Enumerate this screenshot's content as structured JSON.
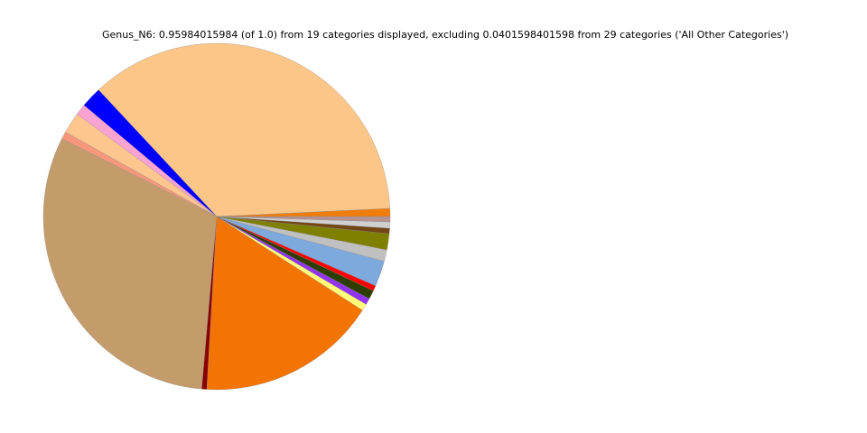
{
  "chart_data": {
    "type": "pie",
    "title": "Genus_N6: 0.95984015984 (of 1.0) from 19 categories displayed, excluding 0.0401598401598 from 29 categories ('All Other Categories')",
    "values": [
      0.0072,
      0.3474,
      0.0187,
      0.0099,
      0.0189,
      0.0067,
      0.2978,
      0.0045,
      0.1613,
      0.0061,
      0.0056,
      0.008,
      0.0048,
      0.0229,
      0.0104,
      0.0144,
      0.0048,
      0.0056,
      0.0048
    ],
    "colors": [
      "#f07d0a",
      "#fdc689",
      "#0000ff",
      "#f9a3d3",
      "#fdc68f",
      "#f7977a",
      "#c49c6c",
      "#8b0000",
      "#f37305",
      "#fffc79",
      "#9333f0",
      "#2d3e00",
      "#ff0000",
      "#7ea9dd",
      "#c0c0c0",
      "#808000",
      "#744515",
      "#d0d0d0",
      "#b59290"
    ],
    "start_angle": 0,
    "counterclockwise": true
  }
}
